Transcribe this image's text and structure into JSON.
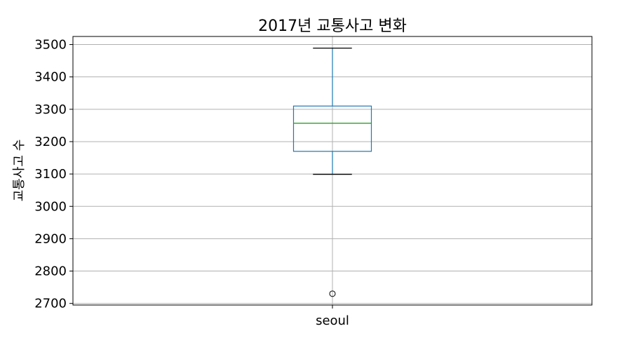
{
  "chart_data": {
    "type": "box",
    "title": "2017년 교통사고 변화",
    "xlabel": "",
    "ylabel": "교통사고 수",
    "categories": [
      "seoul"
    ],
    "boxes": [
      {
        "name": "seoul",
        "whisker_low": 3099,
        "q1": 3170,
        "median": 3257,
        "q3": 3310,
        "whisker_high": 3489,
        "outliers": [
          2730
        ]
      }
    ],
    "ylim": [
      2695,
      3525
    ],
    "yticks": [
      2700,
      2800,
      2900,
      3000,
      3100,
      3200,
      3300,
      3400,
      3500
    ],
    "grid": true,
    "colors": {
      "box": "#1f77b4",
      "median": "#2ca02c",
      "whisker": "#000000",
      "grid": "#b0b0b0"
    }
  }
}
